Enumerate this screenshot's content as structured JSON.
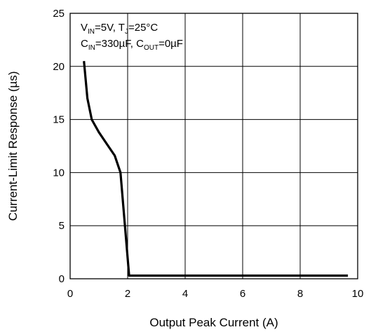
{
  "chart_data": {
    "type": "line",
    "title": "",
    "xlabel": "Output Peak Current (A)",
    "ylabel": "Current-Limit Response (µs)",
    "xlim": [
      0,
      10
    ],
    "ylim": [
      0,
      25
    ],
    "x_ticks": [
      "0",
      "2",
      "4",
      "6",
      "8",
      "10"
    ],
    "y_ticks": [
      "0",
      "5",
      "10",
      "15",
      "20",
      "25"
    ],
    "grid": true,
    "conditions": {
      "line1": [
        {
          "text": "V",
          "sub": false
        },
        {
          "text": "IN",
          "sub": true
        },
        {
          "text": "=5V, T",
          "sub": false
        },
        {
          "text": "J",
          "sub": true
        },
        {
          "text": "=25°C",
          "sub": false
        }
      ],
      "line2": [
        {
          "text": "C",
          "sub": false
        },
        {
          "text": "IN",
          "sub": true
        },
        {
          "text": "=330µF, C",
          "sub": false
        },
        {
          "text": "OUT",
          "sub": true
        },
        {
          "text": "=0µF",
          "sub": false
        }
      ]
    },
    "series": [
      {
        "color": "#000000",
        "x": [
          0.48,
          0.6,
          0.75,
          1.0,
          1.3,
          1.55,
          1.75,
          2.05,
          3.0,
          5.0,
          7.0,
          9.66
        ],
        "y": [
          20.5,
          17.0,
          15.0,
          13.8,
          12.6,
          11.6,
          10.0,
          0.3,
          0.3,
          0.3,
          0.3,
          0.3
        ]
      }
    ]
  }
}
